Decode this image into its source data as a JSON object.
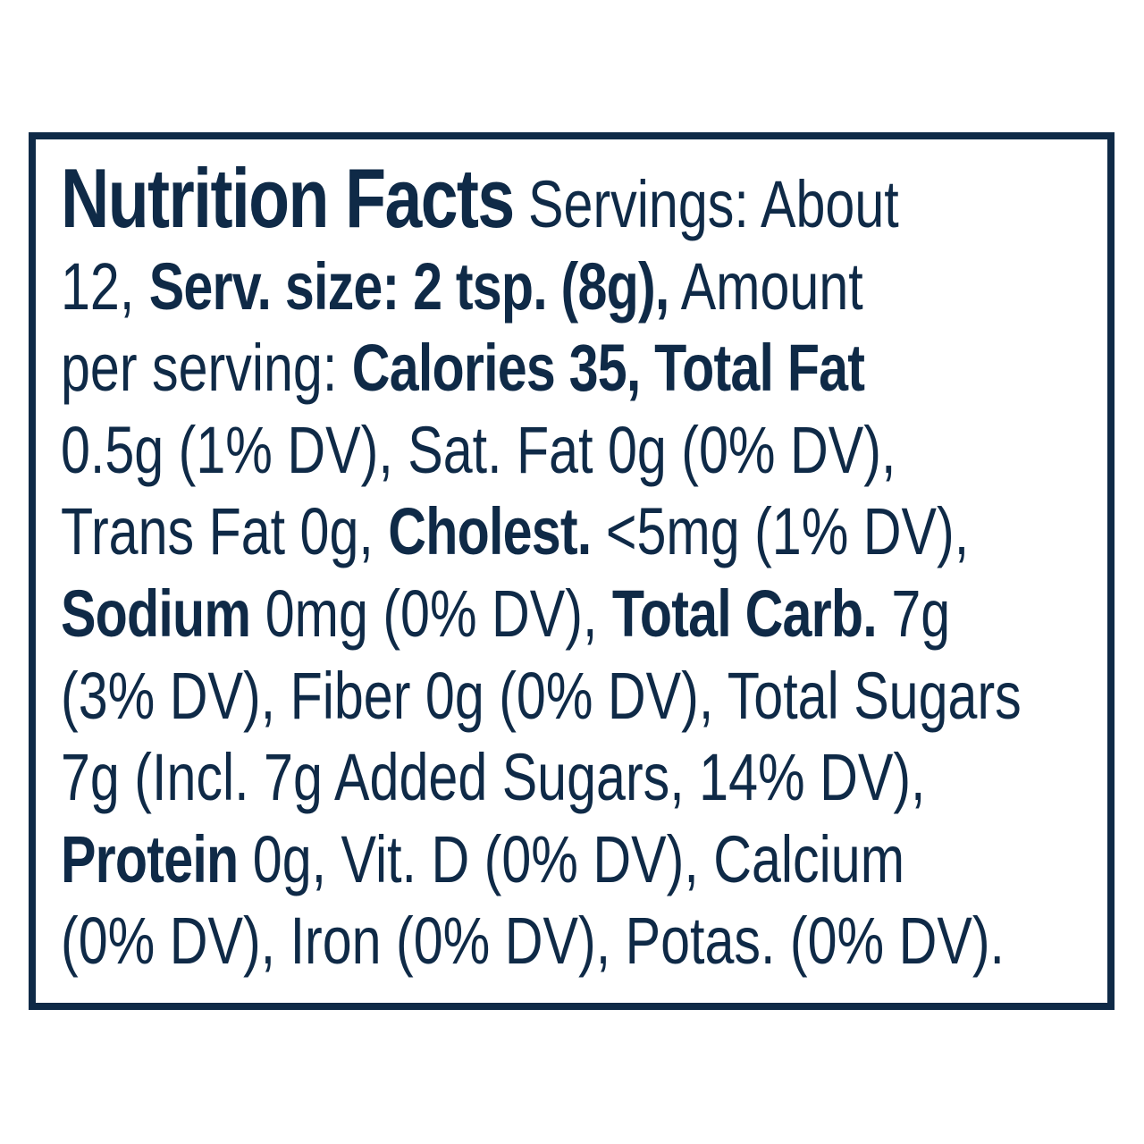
{
  "label": {
    "lines": [
      [
        "Nutrition Facts",
        " Servings: About"
      ],
      [
        "12, ",
        "Serv. size: 2 tsp. (8g),",
        " Amount"
      ],
      [
        "per serving: ",
        "Calories 35, Total Fat"
      ],
      [
        "0.5g (1% DV), Sat. Fat 0g (0% DV),"
      ],
      [
        "Trans Fat 0g, ",
        "Cholest.",
        " <5mg (1% DV),"
      ],
      [
        "Sodium",
        " 0mg (0% DV), ",
        "Total Carb.",
        " 7g"
      ],
      [
        "(3% DV), Fiber 0g (0% DV), Total Sugars"
      ],
      [
        "7g (Incl. 7g Added Sugars, 14% DV),"
      ],
      [
        "Protein",
        " 0g, Vit. D (0% DV), Calcium"
      ],
      [
        "(0% DV), Iron (0% DV), Potas. (0% DV)."
      ]
    ]
  }
}
